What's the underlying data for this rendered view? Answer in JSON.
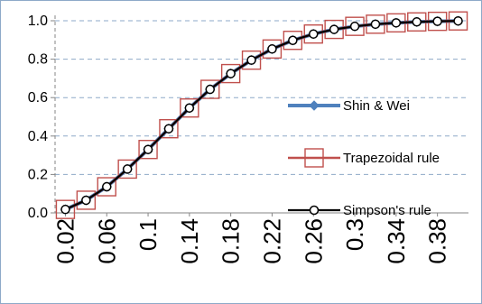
{
  "chart_data": {
    "type": "line",
    "title": "",
    "xlabel": "",
    "ylabel": "",
    "ylim": [
      0,
      1.0
    ],
    "y_ticks": [
      "0.0",
      "0.2",
      "0.4",
      "0.6",
      "0.8",
      "1.0"
    ],
    "x": [
      0.02,
      0.04,
      0.06,
      0.08,
      0.1,
      0.12,
      0.14,
      0.16,
      0.18,
      0.2,
      0.22,
      0.24,
      0.26,
      0.28,
      0.3,
      0.32,
      0.34,
      0.36,
      0.38,
      0.4
    ],
    "x_tick_labels": [
      "0.02",
      "0.06",
      "0.1",
      "0.14",
      "0.18",
      "0.22",
      "0.26",
      "0.3",
      "0.34",
      "0.38"
    ],
    "grid": {
      "horizontal": true,
      "vertical": false,
      "style": "dashed"
    },
    "legend_position": "right",
    "series": [
      {
        "name": "Shin & Wei",
        "color": "#4f81bd",
        "marker": "diamond",
        "values": [
          0.018,
          0.066,
          0.136,
          0.228,
          0.33,
          0.438,
          0.546,
          0.643,
          0.725,
          0.795,
          0.853,
          0.898,
          0.931,
          0.955,
          0.971,
          0.982,
          0.989,
          0.994,
          0.997,
          0.999
        ]
      },
      {
        "name": "Trapezoidal rule",
        "color": "#c0504d",
        "marker": "square",
        "values": [
          0.018,
          0.066,
          0.136,
          0.228,
          0.33,
          0.438,
          0.546,
          0.643,
          0.725,
          0.795,
          0.853,
          0.898,
          0.931,
          0.955,
          0.971,
          0.982,
          0.989,
          0.994,
          0.997,
          0.999
        ]
      },
      {
        "name": "Simpson's rule",
        "color": "#000000",
        "marker": "circle",
        "values": [
          0.018,
          0.066,
          0.136,
          0.228,
          0.33,
          0.438,
          0.546,
          0.643,
          0.725,
          0.795,
          0.853,
          0.898,
          0.931,
          0.955,
          0.971,
          0.982,
          0.989,
          0.994,
          0.997,
          0.999
        ]
      }
    ]
  }
}
